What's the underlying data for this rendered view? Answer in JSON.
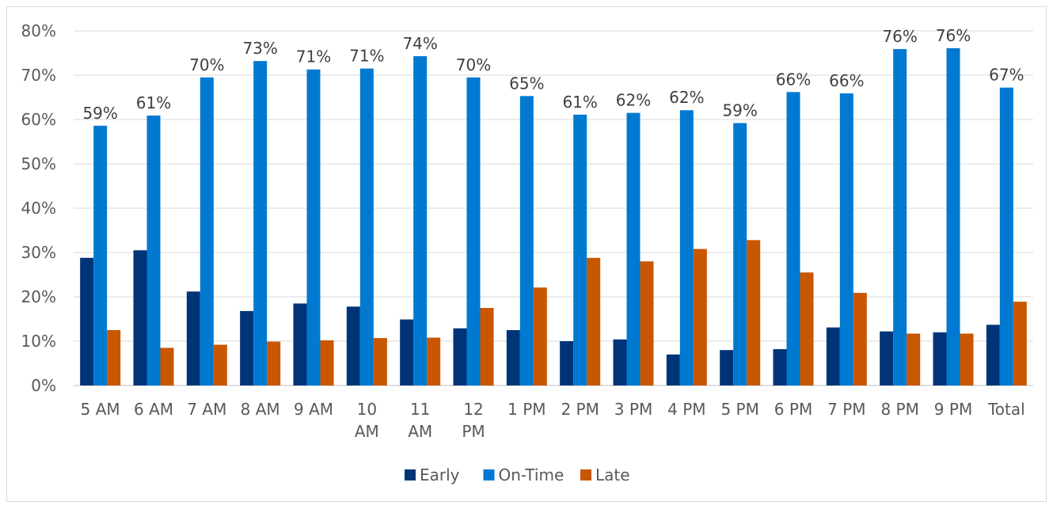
{
  "chart_data": {
    "type": "bar",
    "categories": [
      "5 AM",
      "6 AM",
      "7 AM",
      "8 AM",
      "9 AM",
      "10 AM",
      "11 AM",
      "12 PM",
      "1 PM",
      "2 PM",
      "3 PM",
      "4 PM",
      "5 PM",
      "6 PM",
      "7 PM",
      "8 PM",
      "9 PM",
      "Total"
    ],
    "series": [
      {
        "name": "Early",
        "color": "#003478",
        "values": [
          0.288,
          0.305,
          0.212,
          0.168,
          0.185,
          0.178,
          0.149,
          0.129,
          0.125,
          0.1,
          0.104,
          0.07,
          0.08,
          0.082,
          0.131,
          0.122,
          0.12,
          0.137
        ]
      },
      {
        "name": "On-Time",
        "color": "#0079D1",
        "values": [
          0.586,
          0.609,
          0.695,
          0.732,
          0.713,
          0.715,
          0.743,
          0.695,
          0.653,
          0.611,
          0.615,
          0.621,
          0.592,
          0.662,
          0.659,
          0.759,
          0.761,
          0.672
        ],
        "data_labels": [
          "59%",
          "61%",
          "70%",
          "73%",
          "71%",
          "71%",
          "74%",
          "70%",
          "65%",
          "61%",
          "62%",
          "62%",
          "59%",
          "66%",
          "66%",
          "76%",
          "76%",
          "67%"
        ]
      },
      {
        "name": "Late",
        "color": "#C95600",
        "values": [
          0.125,
          0.085,
          0.092,
          0.099,
          0.102,
          0.107,
          0.108,
          0.175,
          0.221,
          0.288,
          0.28,
          0.308,
          0.328,
          0.255,
          0.209,
          0.117,
          0.117,
          0.189
        ]
      }
    ],
    "ylim": [
      0,
      0.8
    ],
    "yticks": [
      "0%",
      "10%",
      "20%",
      "30%",
      "40%",
      "50%",
      "60%",
      "70%",
      "80%"
    ],
    "grid": true,
    "legend": "bottom"
  }
}
